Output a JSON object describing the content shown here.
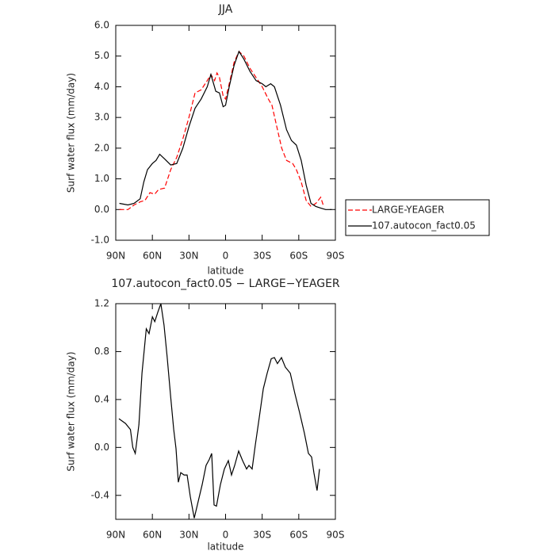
{
  "chart_data": [
    {
      "type": "line",
      "title": "JJA",
      "xlabel": "latitude",
      "ylabel": "Surf water flux (mm/day)",
      "xlim": [
        90,
        -90
      ],
      "xticks": [
        {
          "value": 90,
          "label": "90N"
        },
        {
          "value": 60,
          "label": "60N"
        },
        {
          "value": 30,
          "label": "30N"
        },
        0,
        {
          "value": -30,
          "label": "30S"
        },
        {
          "value": -60,
          "label": "60S"
        },
        {
          "value": -90,
          "label": "90S"
        }
      ],
      "ylim": [
        -1,
        6
      ],
      "yticks": [
        {
          "value": -1,
          "label": "-1.0"
        },
        {
          "value": 0,
          "label": "0.0"
        },
        {
          "value": 1,
          "label": "1.0"
        },
        {
          "value": 2,
          "label": "2.0"
        },
        {
          "value": 3,
          "label": "3.0"
        },
        {
          "value": 4,
          "label": "4.0"
        },
        {
          "value": 5,
          "label": "5.0"
        },
        {
          "value": 6,
          "label": "6.0"
        }
      ],
      "legend": "right",
      "series": [
        {
          "name": "LARGE-YEAGER",
          "color": "#ff0000",
          "style": "dashed",
          "x": [
            87,
            80,
            75,
            70,
            66,
            62,
            58,
            55,
            50,
            45,
            40,
            35,
            30,
            25,
            20,
            15,
            12,
            9,
            7,
            5,
            2,
            0,
            -3,
            -7,
            -11,
            -15,
            -20,
            -25,
            -30,
            -35,
            -38,
            -42,
            -46,
            -50,
            -55,
            -58,
            -62,
            -66,
            -70,
            -74,
            -78,
            -80
          ],
          "values": [
            0.0,
            0.0,
            0.15,
            0.25,
            0.3,
            0.55,
            0.5,
            0.65,
            0.7,
            1.3,
            1.7,
            2.3,
            3.0,
            3.8,
            3.9,
            4.2,
            4.4,
            4.2,
            4.45,
            4.3,
            3.7,
            3.6,
            4.1,
            4.8,
            5.15,
            5.0,
            4.6,
            4.3,
            4.0,
            3.6,
            3.4,
            2.7,
            2.0,
            1.6,
            1.5,
            1.3,
            0.9,
            0.3,
            0.1,
            0.2,
            0.4,
            0.15
          ]
        },
        {
          "name": "107.autocon_fact0.05",
          "color": "#000000",
          "style": "solid",
          "x": [
            87,
            80,
            75,
            70,
            67,
            64,
            60,
            57,
            54,
            50,
            45,
            40,
            35,
            30,
            25,
            20,
            15,
            12,
            8,
            5,
            2,
            0,
            -3,
            -7,
            -11,
            -15,
            -20,
            -25,
            -30,
            -33,
            -37,
            -40,
            -45,
            -50,
            -54,
            -58,
            -62,
            -66,
            -70,
            -74,
            -78,
            -82,
            -87
          ],
          "values": [
            0.2,
            0.15,
            0.2,
            0.35,
            0.9,
            1.3,
            1.5,
            1.6,
            1.8,
            1.65,
            1.45,
            1.5,
            2.0,
            2.7,
            3.3,
            3.6,
            4.0,
            4.4,
            3.85,
            3.8,
            3.35,
            3.4,
            4.0,
            4.7,
            5.15,
            4.9,
            4.5,
            4.2,
            4.1,
            4.0,
            4.1,
            4.0,
            3.4,
            2.6,
            2.25,
            2.1,
            1.6,
            0.8,
            0.2,
            0.1,
            0.05,
            0.0,
            0.0
          ]
        }
      ]
    },
    {
      "type": "line",
      "title": "107.autocon_fact0.05 − LARGE−YEAGER",
      "xlabel": "latitude",
      "ylabel": "Surf water flux (mm/day)",
      "xlim": [
        90,
        -90
      ],
      "xticks": [
        {
          "value": 90,
          "label": "90N"
        },
        {
          "value": 60,
          "label": "60N"
        },
        {
          "value": 30,
          "label": "30N"
        },
        0,
        {
          "value": -30,
          "label": "30S"
        },
        {
          "value": -60,
          "label": "60S"
        },
        {
          "value": -90,
          "label": "90S"
        }
      ],
      "ylim": [
        -0.6,
        1.2
      ],
      "yticks": [
        -0.4,
        {
          "value": 0,
          "label": "0.0"
        },
        0.4,
        0.8,
        1.2
      ],
      "color": "#000000",
      "x": [
        87.4,
        82,
        78,
        76,
        74,
        71,
        68.5,
        65,
        62.7,
        60,
        58,
        55.5,
        53,
        50.4,
        47.8,
        45,
        42.5,
        40.6,
        38.7,
        36.7,
        34,
        31.5,
        28.9,
        25.7,
        22.4,
        19.2,
        16,
        13.3,
        11.4,
        9.4,
        7.5,
        4.2,
        1,
        -2.3,
        -4.9,
        -7.5,
        -10.7,
        -14,
        -17.2,
        -19.2,
        -21.8,
        -24.4,
        -27.6,
        -30.9,
        -34.1,
        -37.4,
        -40,
        -42.5,
        -45.8,
        -49,
        -53,
        -56.8,
        -60.7,
        -64.6,
        -67.9,
        -70.5,
        -72.4,
        -75,
        -77
      ],
      "values": [
        0.24,
        0.2,
        0.15,
        0.0,
        -0.05,
        0.19,
        0.62,
        0.99,
        0.95,
        1.09,
        1.05,
        1.13,
        1.2,
        1.02,
        0.75,
        0.42,
        0.15,
        -0.01,
        -0.29,
        -0.21,
        -0.23,
        -0.23,
        -0.41,
        -0.59,
        -0.45,
        -0.31,
        -0.15,
        -0.1,
        -0.05,
        -0.48,
        -0.49,
        -0.31,
        -0.18,
        -0.11,
        -0.23,
        -0.15,
        -0.03,
        -0.11,
        -0.18,
        -0.15,
        -0.18,
        0.02,
        0.25,
        0.49,
        0.62,
        0.74,
        0.75,
        0.7,
        0.75,
        0.67,
        0.62,
        0.45,
        0.29,
        0.12,
        -0.05,
        -0.08,
        -0.21,
        -0.36,
        -0.18
      ]
    }
  ]
}
